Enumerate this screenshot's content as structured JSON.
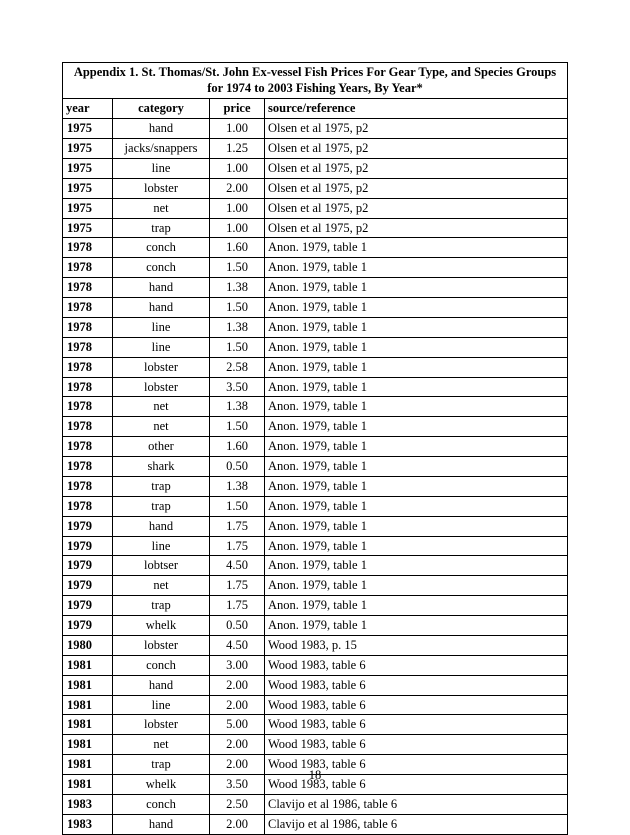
{
  "title_line1": "Appendix 1.  St. Thomas/St. John Ex-vessel Fish Prices For Gear Type, and Species Groups",
  "title_line2": "for 1974 to 2003 Fishing Years, By Year*",
  "headers": {
    "year": "year",
    "category": "category",
    "price": "price",
    "source": "source/reference"
  },
  "page_number": "18",
  "rows": [
    {
      "year": "1975",
      "cat": "hand",
      "price": "1.00",
      "src": "Olsen et al 1975, p2"
    },
    {
      "year": "1975",
      "cat": "jacks/snappers",
      "price": "1.25",
      "src": "Olsen et al 1975, p2"
    },
    {
      "year": "1975",
      "cat": "line",
      "price": "1.00",
      "src": "Olsen et al 1975, p2"
    },
    {
      "year": "1975",
      "cat": "lobster",
      "price": "2.00",
      "src": "Olsen et al 1975, p2"
    },
    {
      "year": "1975",
      "cat": "net",
      "price": "1.00",
      "src": "Olsen et al 1975, p2"
    },
    {
      "year": "1975",
      "cat": "trap",
      "price": "1.00",
      "src": "Olsen et al 1975, p2"
    },
    {
      "year": "1978",
      "cat": "conch",
      "price": "1.60",
      "src": "Anon.  1979, table 1"
    },
    {
      "year": "1978",
      "cat": "conch",
      "price": "1.50",
      "src": "Anon.  1979, table 1"
    },
    {
      "year": "1978",
      "cat": "hand",
      "price": "1.38",
      "src": "Anon.  1979, table 1"
    },
    {
      "year": "1978",
      "cat": "hand",
      "price": "1.50",
      "src": "Anon.  1979, table 1"
    },
    {
      "year": "1978",
      "cat": "line",
      "price": "1.38",
      "src": "Anon.  1979, table 1"
    },
    {
      "year": "1978",
      "cat": "line",
      "price": "1.50",
      "src": "Anon.  1979, table 1"
    },
    {
      "year": "1978",
      "cat": "lobster",
      "price": "2.58",
      "src": "Anon.  1979, table 1"
    },
    {
      "year": "1978",
      "cat": "lobster",
      "price": "3.50",
      "src": "Anon.  1979, table 1"
    },
    {
      "year": "1978",
      "cat": "net",
      "price": "1.38",
      "src": "Anon.  1979, table 1"
    },
    {
      "year": "1978",
      "cat": "net",
      "price": "1.50",
      "src": "Anon.  1979, table 1"
    },
    {
      "year": "1978",
      "cat": "other",
      "price": "1.60",
      "src": "Anon.  1979, table 1"
    },
    {
      "year": "1978",
      "cat": "shark",
      "price": "0.50",
      "src": "Anon.  1979, table 1"
    },
    {
      "year": "1978",
      "cat": "trap",
      "price": "1.38",
      "src": "Anon.  1979, table 1"
    },
    {
      "year": "1978",
      "cat": "trap",
      "price": "1.50",
      "src": "Anon.  1979, table 1"
    },
    {
      "year": "1979",
      "cat": "hand",
      "price": "1.75",
      "src": "Anon.  1979, table 1"
    },
    {
      "year": "1979",
      "cat": "line",
      "price": "1.75",
      "src": "Anon.  1979, table 1"
    },
    {
      "year": "1979",
      "cat": "lobtser",
      "price": "4.50",
      "src": "Anon.  1979, table 1"
    },
    {
      "year": "1979",
      "cat": "net",
      "price": "1.75",
      "src": "Anon.  1979, table 1"
    },
    {
      "year": "1979",
      "cat": "trap",
      "price": "1.75",
      "src": "Anon.  1979, table 1"
    },
    {
      "year": "1979",
      "cat": "whelk",
      "price": "0.50",
      "src": "Anon.  1979, table 1"
    },
    {
      "year": "1980",
      "cat": "lobster",
      "price": "4.50",
      "src": "Wood 1983, p. 15"
    },
    {
      "year": "1981",
      "cat": "conch",
      "price": "3.00",
      "src": "Wood 1983, table 6"
    },
    {
      "year": "1981",
      "cat": "hand",
      "price": "2.00",
      "src": "Wood 1983, table 6"
    },
    {
      "year": "1981",
      "cat": "line",
      "price": "2.00",
      "src": "Wood 1983, table 6"
    },
    {
      "year": "1981",
      "cat": "lobster",
      "price": "5.00",
      "src": "Wood 1983, table 6"
    },
    {
      "year": "1981",
      "cat": "net",
      "price": "2.00",
      "src": "Wood 1983, table 6"
    },
    {
      "year": "1981",
      "cat": "trap",
      "price": "2.00",
      "src": "Wood 1983, table 6"
    },
    {
      "year": "1981",
      "cat": "whelk",
      "price": "3.50",
      "src": "Wood 1983, table 6"
    },
    {
      "year": "1983",
      "cat": "conch",
      "price": "2.50",
      "src": "Clavijo et al 1986, table 6"
    },
    {
      "year": "1983",
      "cat": "hand",
      "price": "2.00",
      "src": "Clavijo et al 1986, table 6"
    }
  ]
}
